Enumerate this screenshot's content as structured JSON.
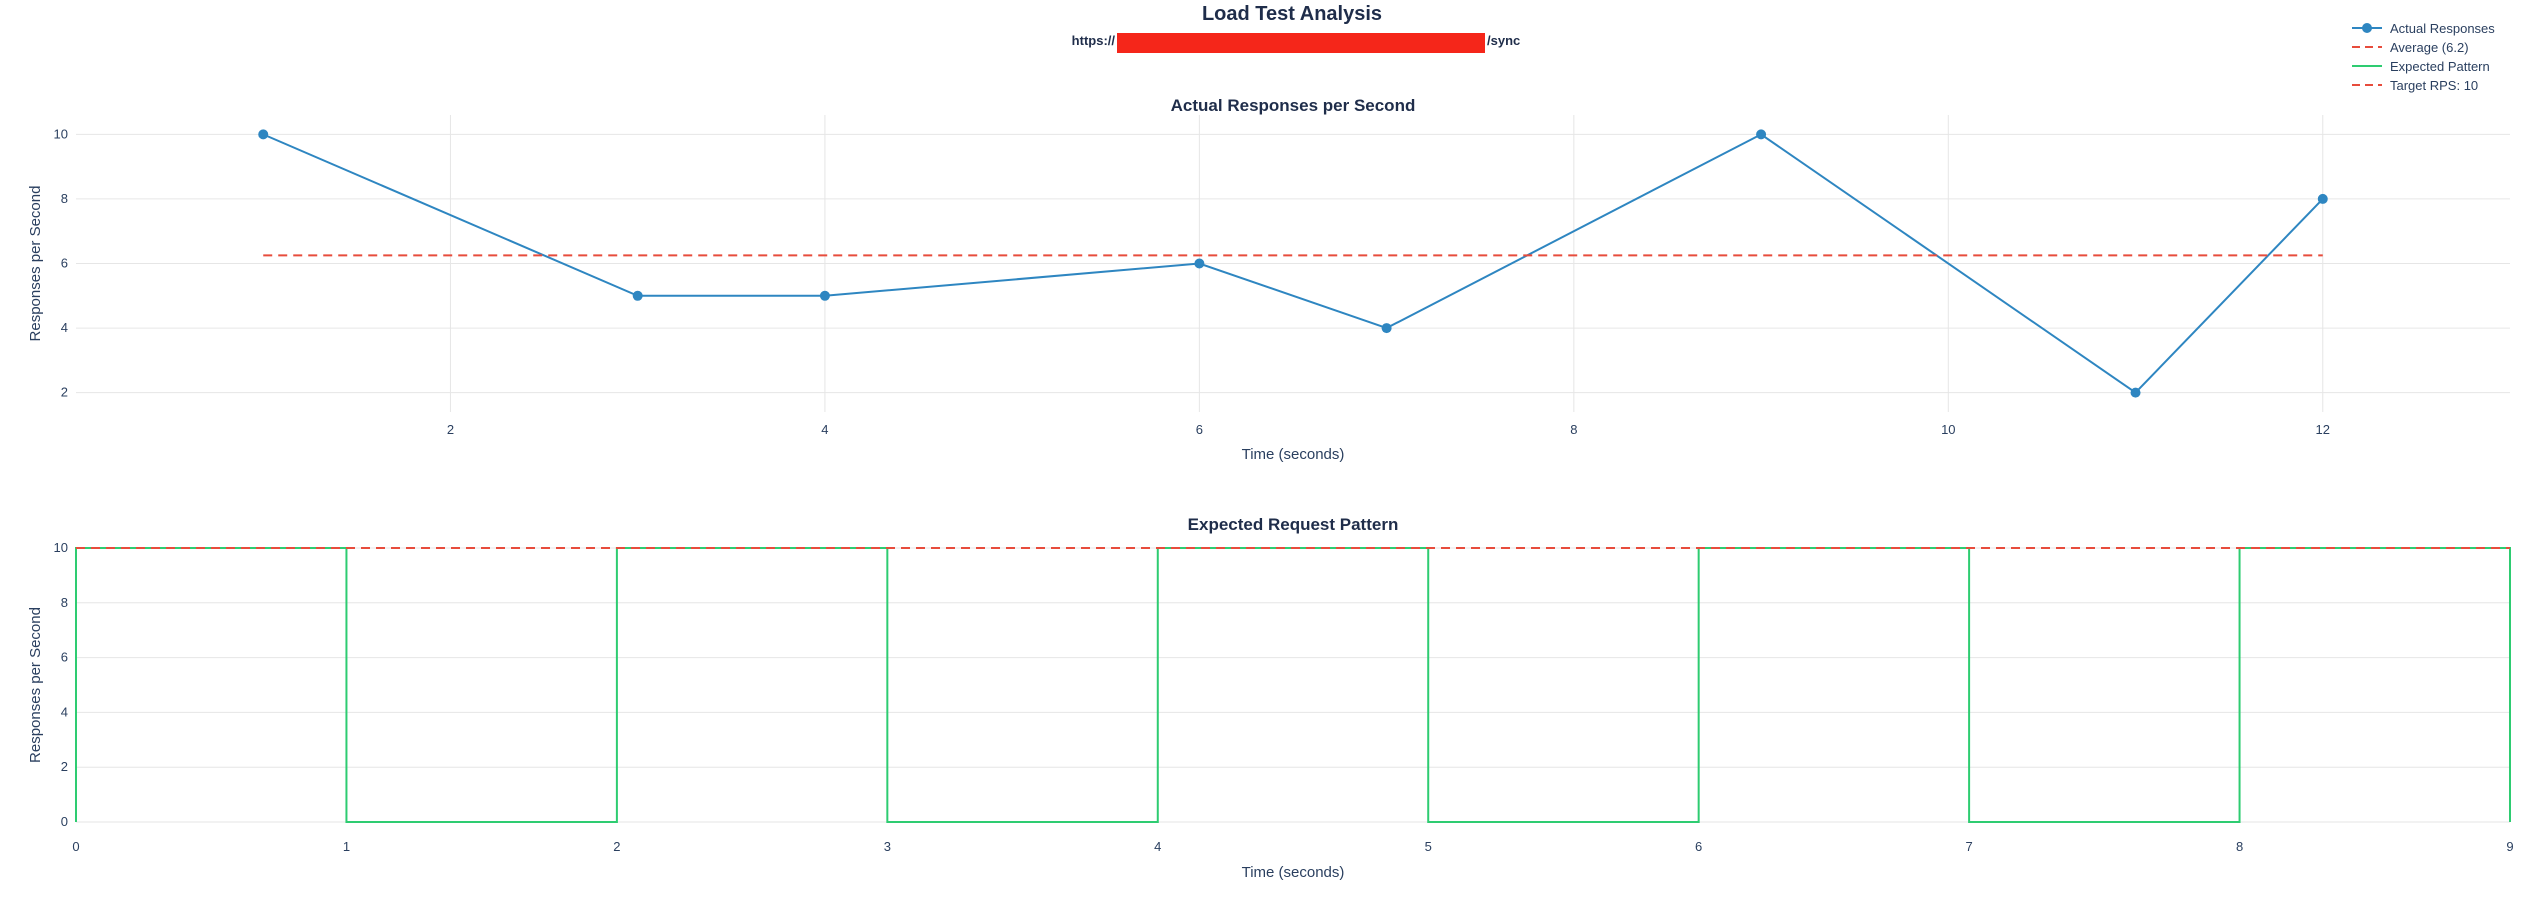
{
  "figure": {
    "title": "Load Test Analysis",
    "url_prefix": "https://",
    "url_suffix": "/sync",
    "redaction_color": "#f5261a"
  },
  "legend": {
    "placement": "top-right",
    "items": [
      {
        "label": "Actual Responses",
        "color": "#2e86c1",
        "style": "line-marker"
      },
      {
        "label": "Average (6.2)",
        "color": "#e74c3c",
        "style": "dash"
      },
      {
        "label": "Expected Pattern",
        "color": "#2ecc71",
        "style": "line"
      },
      {
        "label": "Target RPS: 10",
        "color": "#e74c3c",
        "style": "dash"
      }
    ]
  },
  "chart_data": [
    {
      "type": "line",
      "title": "Actual Responses per Second",
      "xlabel": "Time (seconds)",
      "ylabel": "Responses per Second",
      "xlim": [
        0.0,
        13.0
      ],
      "ylim": [
        1.4,
        10.6
      ],
      "x_ticks": [
        2,
        4,
        6,
        8,
        10,
        12
      ],
      "y_ticks": [
        2,
        4,
        6,
        8,
        10
      ],
      "grid": true,
      "series": [
        {
          "name": "Actual Responses",
          "color": "#2e86c1",
          "x": [
            1,
            3,
            4,
            6,
            7,
            9,
            11,
            12
          ],
          "y": [
            10,
            5,
            5,
            6,
            4,
            10,
            2,
            8
          ]
        },
        {
          "name": "Average (6.2)",
          "color": "#e74c3c",
          "dash": true,
          "x": [
            1,
            12
          ],
          "y": [
            6.25,
            6.25
          ]
        }
      ]
    },
    {
      "type": "line",
      "title": "Expected Request Pattern",
      "xlabel": "Time (seconds)",
      "ylabel": "Responses per Second",
      "xlim": [
        0,
        9
      ],
      "ylim": [
        0,
        10
      ],
      "x_ticks": [
        0,
        1,
        2,
        3,
        4,
        5,
        6,
        7,
        8,
        9
      ],
      "y_ticks": [
        0,
        2,
        4,
        6,
        8,
        10
      ],
      "grid": true,
      "series": [
        {
          "name": "Expected Pattern",
          "color": "#2ecc71",
          "x": [
            0,
            0,
            1,
            1,
            2,
            2,
            3,
            3,
            4,
            4,
            5,
            5,
            6,
            6,
            7,
            7,
            8,
            8,
            9,
            9
          ],
          "y": [
            0,
            10,
            10,
            0,
            0,
            10,
            10,
            0,
            0,
            10,
            10,
            0,
            0,
            10,
            10,
            0,
            0,
            10,
            10,
            0
          ]
        },
        {
          "name": "Target RPS: 10",
          "color": "#e74c3c",
          "dash": true,
          "x": [
            0,
            9
          ],
          "y": [
            10,
            10
          ]
        }
      ]
    }
  ]
}
